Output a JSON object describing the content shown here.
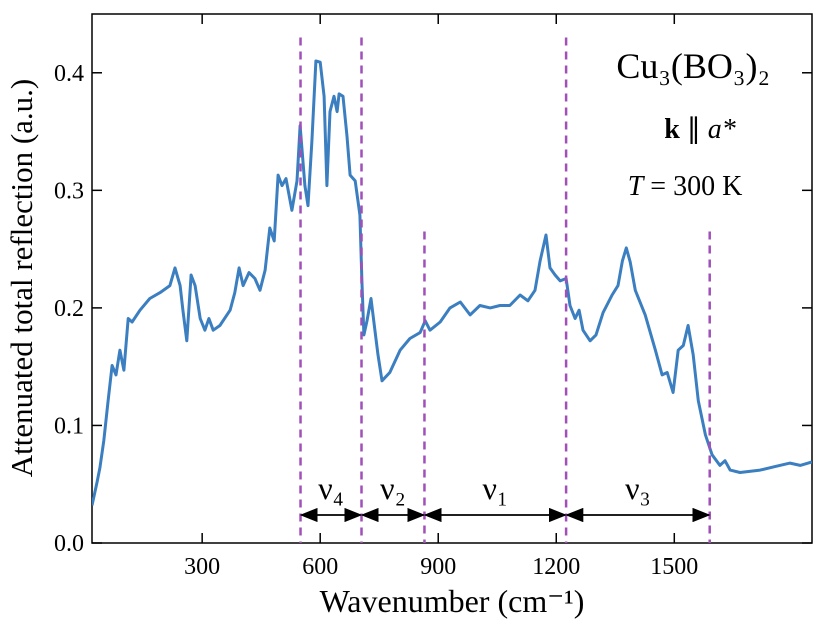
{
  "chart_data": {
    "type": "line",
    "annotations": {
      "formula": "Cu₃(BO₃)₂",
      "direction": {
        "vector": "k",
        "symbol": "∥",
        "axis": "a*"
      },
      "temperature": {
        "symbol": "T",
        "text": "= 300 K"
      }
    },
    "xlabel": "Wavenumber (cm⁻¹)",
    "ylabel": "Attenuated total reflection (a.u.)",
    "xlim": [
      20,
      1850
    ],
    "ylim": [
      0,
      0.45
    ],
    "xticks": [
      300,
      600,
      900,
      1200,
      1500
    ],
    "yticks": [
      {
        "value": 0,
        "label": "0.0"
      },
      0.1,
      0.2,
      0.3,
      0.4
    ],
    "boundaries": [
      550,
      705,
      865,
      1225,
      1590
    ],
    "boundary_color": "#a050b8",
    "regions": [
      "ν₄",
      "ν₂",
      "ν₁",
      "ν₃"
    ],
    "x": [
      20,
      33,
      40,
      50,
      61,
      71,
      81,
      91,
      101,
      112,
      122,
      142,
      167,
      193,
      218,
      231,
      244,
      251,
      261,
      272,
      282,
      295,
      307,
      317,
      328,
      345,
      371,
      383,
      394,
      404,
      419,
      434,
      447,
      460,
      472,
      483,
      493,
      503,
      513,
      528,
      541,
      549,
      561,
      569,
      579,
      589,
      600,
      610,
      617,
      625,
      635,
      643,
      648,
      658,
      668,
      676,
      689,
      701,
      706,
      711,
      719,
      729,
      739,
      747,
      757,
      777,
      803,
      828,
      854,
      867,
      879,
      905,
      930,
      956,
      981,
      1006,
      1032,
      1057,
      1082,
      1108,
      1128,
      1146,
      1159,
      1174,
      1184,
      1197,
      1210,
      1225,
      1235,
      1248,
      1258,
      1268,
      1286,
      1301,
      1319,
      1342,
      1357,
      1368,
      1378,
      1388,
      1401,
      1426,
      1452,
      1469,
      1482,
      1497,
      1510,
      1523,
      1535,
      1548,
      1561,
      1579,
      1596,
      1616,
      1629,
      1642,
      1667,
      1718,
      1756,
      1794,
      1820,
      1850
    ],
    "series": [
      {
        "color": "#3b7fc0",
        "values": [
          0.032,
          0.052,
          0.064,
          0.087,
          0.121,
          0.151,
          0.143,
          0.164,
          0.147,
          0.191,
          0.188,
          0.198,
          0.208,
          0.213,
          0.219,
          0.234,
          0.219,
          0.198,
          0.172,
          0.228,
          0.219,
          0.191,
          0.181,
          0.191,
          0.181,
          0.185,
          0.198,
          0.213,
          0.234,
          0.219,
          0.23,
          0.225,
          0.215,
          0.232,
          0.268,
          0.257,
          0.313,
          0.304,
          0.31,
          0.283,
          0.308,
          0.355,
          0.304,
          0.287,
          0.342,
          0.41,
          0.409,
          0.38,
          0.304,
          0.367,
          0.38,
          0.367,
          0.382,
          0.38,
          0.346,
          0.313,
          0.308,
          0.279,
          0.223,
          0.177,
          0.189,
          0.208,
          0.181,
          0.16,
          0.138,
          0.145,
          0.164,
          0.174,
          0.179,
          0.189,
          0.181,
          0.188,
          0.2,
          0.205,
          0.194,
          0.202,
          0.2,
          0.202,
          0.202,
          0.211,
          0.206,
          0.215,
          0.24,
          0.262,
          0.234,
          0.228,
          0.223,
          0.225,
          0.202,
          0.191,
          0.198,
          0.181,
          0.172,
          0.177,
          0.196,
          0.211,
          0.219,
          0.24,
          0.251,
          0.239,
          0.215,
          0.194,
          0.164,
          0.143,
          0.145,
          0.128,
          0.164,
          0.168,
          0.185,
          0.16,
          0.121,
          0.092,
          0.075,
          0.066,
          0.07,
          0.062,
          0.06,
          0.062,
          0.065,
          0.068,
          0.066,
          0.069
        ]
      }
    ]
  }
}
